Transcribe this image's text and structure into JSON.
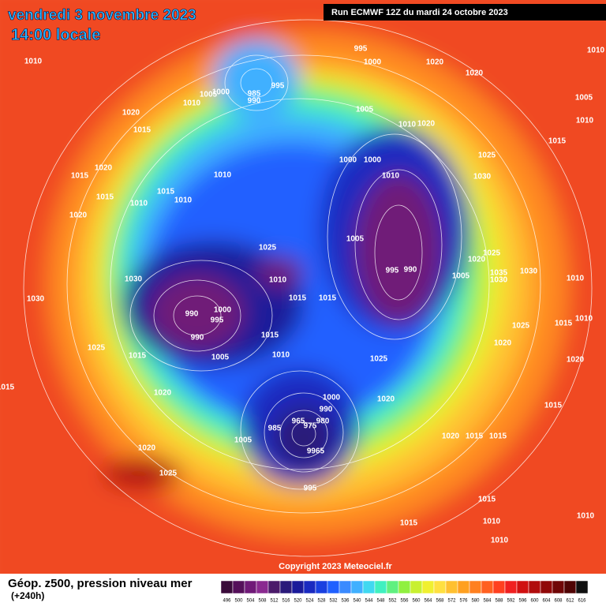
{
  "header": {
    "title": "vendredi 3 novembre 2023",
    "subtitle": "14:00 locale",
    "run": "Run ECMWF 12Z du mardi 24 octobre 2023"
  },
  "copyright": "Copyright 2023 Meteociel.fr",
  "legend": {
    "title": "Géop. z500, pression niveau mer",
    "lead": "(+240h)",
    "values": [
      496,
      500,
      504,
      508,
      512,
      516,
      520,
      524,
      528,
      532,
      536,
      540,
      544,
      548,
      552,
      556,
      560,
      564,
      568,
      572,
      576,
      580,
      584,
      588,
      592,
      596,
      600,
      604,
      608,
      612,
      616
    ],
    "colors": [
      "#3a0b3a",
      "#55105a",
      "#701a78",
      "#8a2a90",
      "#4b1a6a",
      "#2a1a7a",
      "#1a1a9a",
      "#1a2ac0",
      "#1a40e0",
      "#2060ff",
      "#3a8aff",
      "#40b0ff",
      "#40d8f0",
      "#40f0c0",
      "#60f080",
      "#90f040",
      "#c8f030",
      "#f0f030",
      "#ffe040",
      "#ffc030",
      "#ffa020",
      "#ff8020",
      "#ff6020",
      "#ff4020",
      "#f02020",
      "#d01010",
      "#b00c0c",
      "#900808",
      "#700606",
      "#500404",
      "#101010"
    ]
  },
  "isobar_labels": [
    "1010",
    "1010",
    "1005",
    "1000",
    "1020",
    "1015",
    "985",
    "990",
    "995",
    "995",
    "1000",
    "1020",
    "1020",
    "1010",
    "1005",
    "1010",
    "1005",
    "1010",
    "1020",
    "1015",
    "1025",
    "1030",
    "1020",
    "1015",
    "1015",
    "1010",
    "1010",
    "1015",
    "1010",
    "1000",
    "1000",
    "1010",
    "1020",
    "1025",
    "1030",
    "1010",
    "1005",
    "995",
    "990",
    "1005",
    "1020",
    "1025",
    "1035",
    "1030",
    "1030",
    "1010",
    "1030",
    "990",
    "1000",
    "995",
    "990",
    "1015",
    "1015",
    "1025",
    "1015",
    "1010",
    "1025",
    "1015",
    "1015",
    "1010",
    "1005",
    "1025",
    "1020",
    "1020",
    "1015",
    "1020",
    "1000",
    "990",
    "1020",
    "1015",
    "965",
    "975",
    "980",
    "985",
    "1005",
    "9965",
    "1020",
    "1015",
    "1015",
    "1020",
    "1025",
    "995",
    "1015",
    "1010",
    "1010",
    "1010",
    "1015"
  ]
}
